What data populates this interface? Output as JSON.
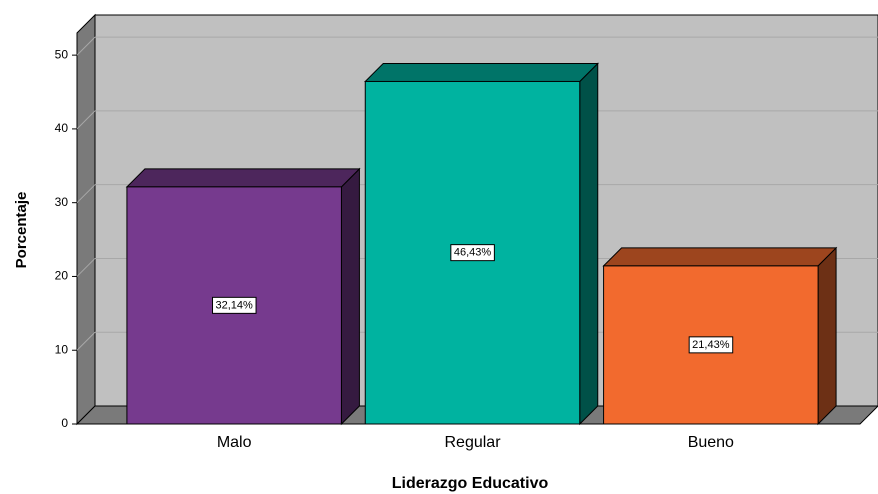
{
  "chart_data": {
    "type": "bar3d",
    "x_label": "Liderazgo Educativo",
    "y_label": "Porcentaje",
    "categories": [
      "Malo",
      "Regular",
      "Bueno"
    ],
    "values": [
      32.14,
      46.43,
      21.43
    ],
    "value_labels": [
      "32,14%",
      "46,43%",
      "21,43%"
    ],
    "colors": [
      "#763a8e",
      "#00b3a0",
      "#f26a2e"
    ],
    "ylim": [
      0,
      53
    ],
    "yticks": [
      0,
      10,
      20,
      30,
      40,
      50
    ],
    "grid": true
  }
}
